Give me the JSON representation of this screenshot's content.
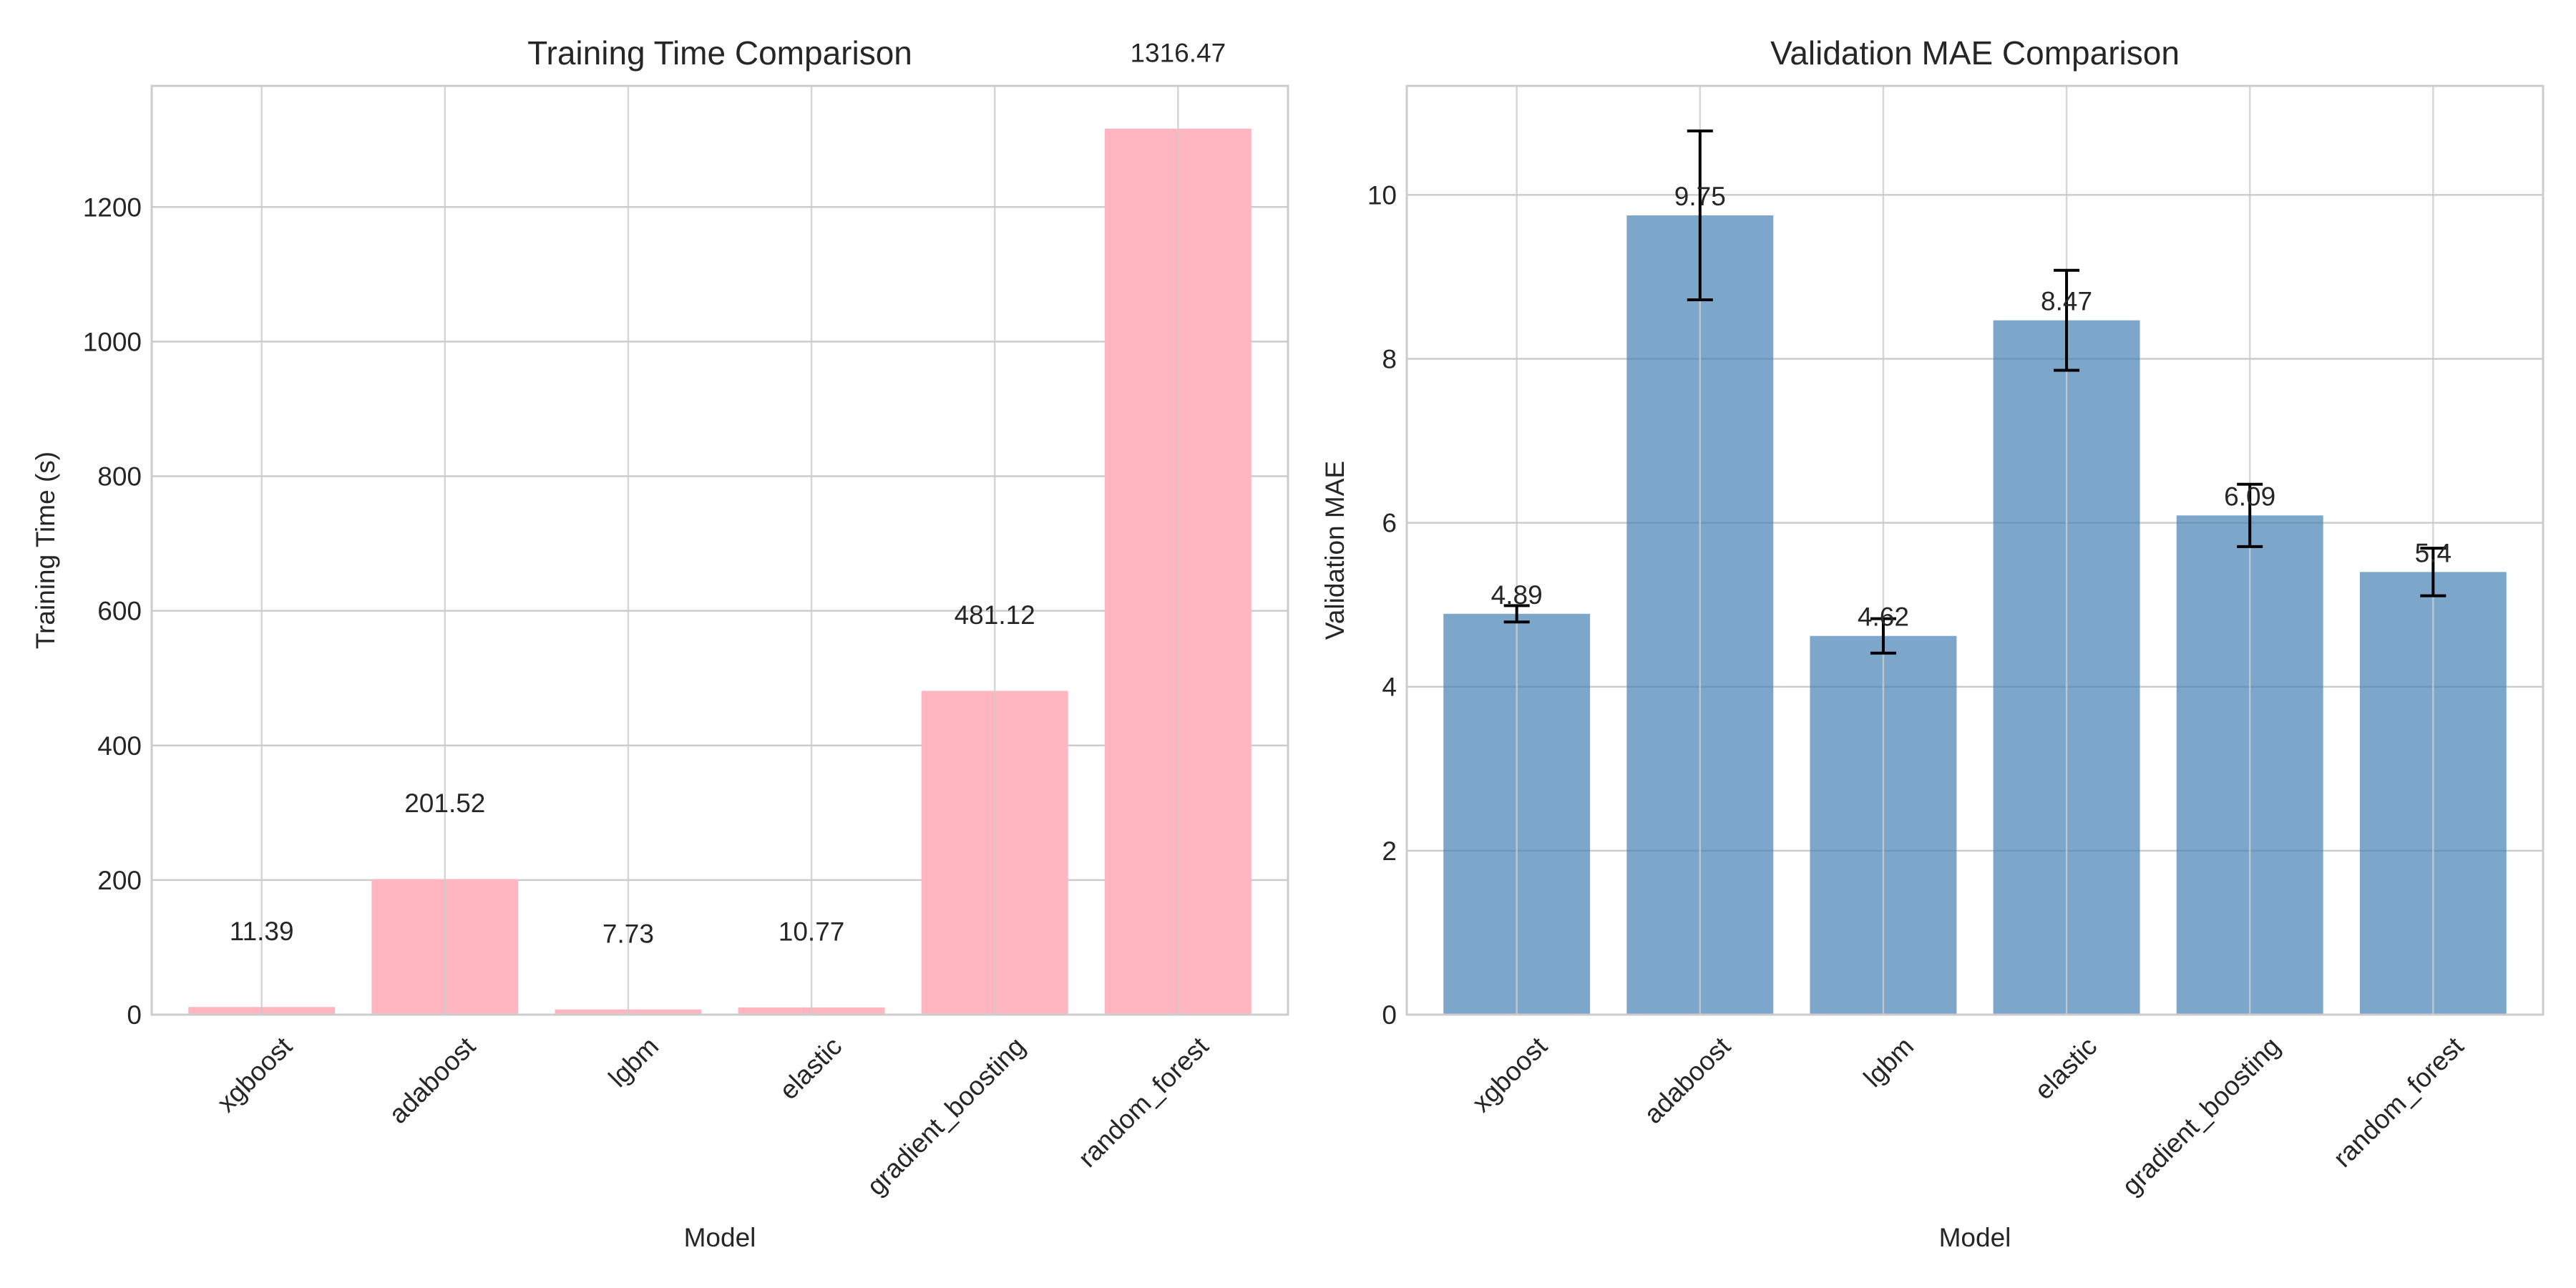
{
  "chart_data": [
    {
      "type": "bar",
      "title": "Training Time Comparison",
      "xlabel": "Model",
      "ylabel": "Training Time (s)",
      "categories": [
        "xgboost",
        "adaboost",
        "lgbm",
        "elastic",
        "gradient_boosting",
        "random_forest"
      ],
      "values": [
        11.39,
        201.52,
        7.73,
        10.77,
        481.12,
        1316.47
      ],
      "value_labels": [
        "11.39",
        "201.52",
        "7.73",
        "10.77",
        "481.12",
        "1316.47"
      ],
      "ylim": [
        0,
        1380
      ],
      "yticks": [
        0,
        200,
        400,
        600,
        800,
        1000,
        1200
      ],
      "ytick_labels": [
        "0",
        "200",
        "400",
        "600",
        "800",
        "1000",
        "1200"
      ],
      "bar_color": "#ffb6c1",
      "grid": true
    },
    {
      "type": "bar",
      "title": "Validation MAE Comparison",
      "xlabel": "Model",
      "ylabel": "Validation MAE",
      "categories": [
        "xgboost",
        "adaboost",
        "lgbm",
        "elastic",
        "gradient_boosting",
        "random_forest"
      ],
      "values": [
        4.89,
        9.75,
        4.62,
        8.47,
        6.09,
        5.4
      ],
      "value_labels": [
        "4.89",
        "9.75",
        "4.62",
        "8.47",
        "6.09",
        "5.4"
      ],
      "errors": [
        0.1,
        1.03,
        0.21,
        0.61,
        0.38,
        0.29
      ],
      "ylim": [
        0,
        11.33
      ],
      "yticks": [
        0,
        2,
        4,
        6,
        8,
        10
      ],
      "ytick_labels": [
        "0",
        "2",
        "4",
        "6",
        "8",
        "10"
      ],
      "bar_color": "#4682b4",
      "bar_alpha": 0.7,
      "grid": true
    }
  ]
}
